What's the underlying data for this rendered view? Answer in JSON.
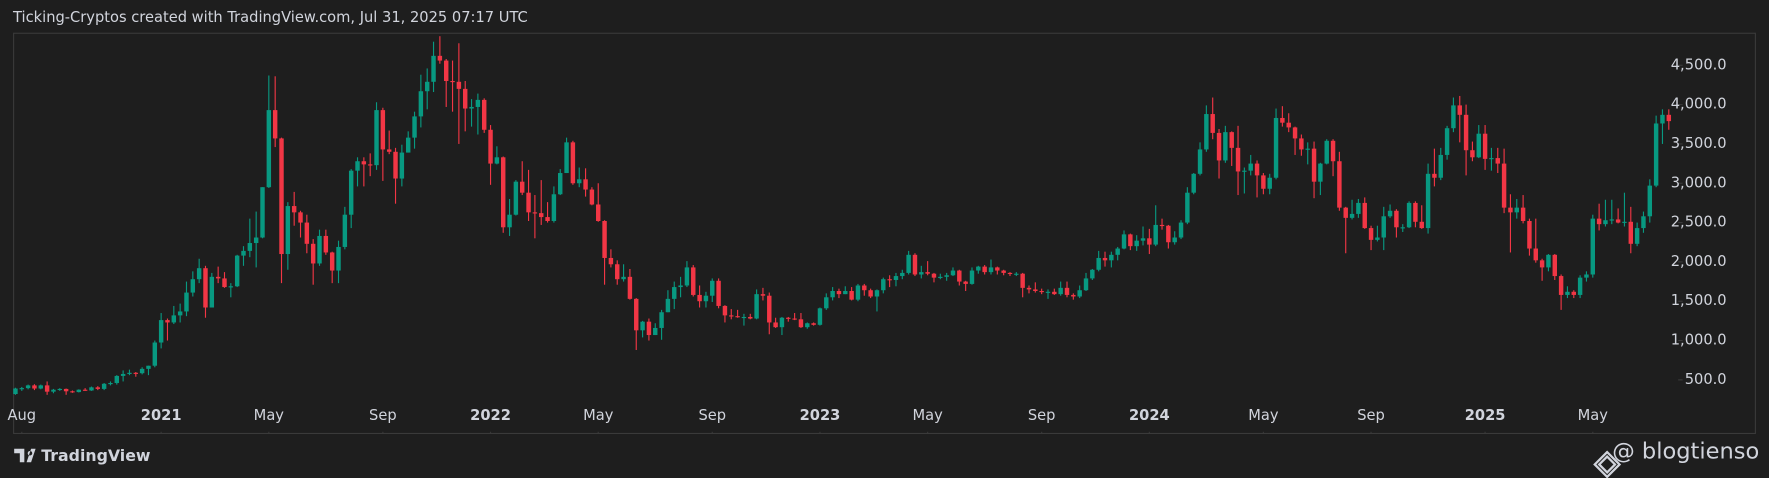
{
  "chart_data": {
    "type": "candlestick",
    "title": "Ticking-Cryptos created with TradingView.com, Jul 31, 2025 07:17 UTC",
    "up_color": "#089981",
    "down_color": "#f23645",
    "xlim": [
      -0.2,
      262.3
    ],
    "ylim": [
      -160,
      4900
    ],
    "yticks": [
      {
        "value": 500,
        "label": "500.0"
      },
      {
        "value": 1000,
        "label": "1,000.0"
      },
      {
        "value": 1500,
        "label": "1,500.0"
      },
      {
        "value": 2000,
        "label": "2,000.0"
      },
      {
        "value": 2500,
        "label": "2,500.0"
      },
      {
        "value": 3000,
        "label": "3,000.0"
      },
      {
        "value": 3500,
        "label": "3,500.0"
      },
      {
        "value": 4000,
        "label": "4,000.0"
      },
      {
        "value": 4500,
        "label": "4,500.0"
      }
    ],
    "xticks": [
      {
        "value": 1,
        "label": "Aug"
      },
      {
        "value": 23,
        "label": "2021"
      },
      {
        "value": 40,
        "label": "May"
      },
      {
        "value": 58,
        "label": "Sep"
      },
      {
        "value": 75,
        "label": "2022"
      },
      {
        "value": 92,
        "label": "May"
      },
      {
        "value": 110,
        "label": "Sep"
      },
      {
        "value": 127,
        "label": "2023"
      },
      {
        "value": 144,
        "label": "May"
      },
      {
        "value": 162,
        "label": "Sep"
      },
      {
        "value": 179,
        "label": "2024"
      },
      {
        "value": 197,
        "label": "May"
      },
      {
        "value": 214,
        "label": "Sep"
      },
      {
        "value": 232,
        "label": "2025"
      },
      {
        "value": 249,
        "label": "May"
      }
    ],
    "open": [
      320,
      390,
      395,
      430,
      390,
      430,
      350,
      375,
      385,
      355,
      345,
      375,
      365,
      405,
      385,
      450,
      460,
      550,
      575,
      590,
      585,
      640,
      680,
      975,
      1260,
      1230,
      1320,
      1370,
      1610,
      1780,
      1920,
      1420,
      1810,
      1790,
      1680,
      1690,
      2080,
      2140,
      2240,
      2310,
      2950,
      3930,
      3570,
      2100,
      2710,
      2630,
      2500,
      2230,
      1980,
      2330,
      2120,
      1890,
      2190,
      2600,
      3160,
      3280,
      3240,
      3230,
      3930,
      3430,
      3400,
      3060,
      3390,
      3580,
      3850,
      4170,
      4290,
      4620,
      4560,
      4300,
      4290,
      4200,
      3950,
      3970,
      4060,
      3680,
      3250,
      3330,
      2440,
      2600,
      3020,
      2880,
      2630,
      2620,
      2570,
      2520,
      2860,
      3130,
      3520,
      3000,
      3050,
      2920,
      2730,
      2520,
      2050,
      1970,
      1780,
      1810,
      1530,
      1130,
      1240,
      1070,
      1160,
      1360,
      1530,
      1680,
      1700,
      1930,
      1580,
      1500,
      1570,
      1760,
      1440,
      1320,
      1310,
      1300,
      1300,
      1280,
      1590,
      1570,
      1230,
      1170,
      1290,
      1280,
      1270,
      1170,
      1220,
      1200,
      1410,
      1550,
      1630,
      1590,
      1630,
      1520,
      1700,
      1640,
      1560,
      1640,
      1780,
      1770,
      1820,
      1860,
      2090,
      1840,
      1870,
      1850,
      1800,
      1810,
      1830,
      1890,
      1750,
      1720,
      1890,
      1940,
      1870,
      1930,
      1890,
      1860,
      1850,
      1850,
      1670,
      1650,
      1630,
      1620,
      1620,
      1590,
      1670,
      1580,
      1560,
      1640,
      1790,
      1900,
      2050,
      2020,
      2090,
      2170,
      2350,
      2200,
      2270,
      2300,
      2220,
      2470,
      2460,
      2250,
      2310,
      2500,
      2880,
      3120,
      3430,
      3880,
      3640,
      3290,
      3650,
      3450,
      3150,
      3160,
      3250,
      3100,
      2930,
      3070,
      3830,
      3770,
      3710,
      3570,
      3430,
      3440,
      3020,
      3250,
      3540,
      3280,
      2690,
      2560,
      2610,
      2750,
      2430,
      2280,
      2310,
      2580,
      2650,
      2440,
      2440,
      2750,
      2510,
      2430,
      3120,
      3070,
      3360,
      3700,
      3990,
      3870,
      3420,
      3330,
      3630,
      3310,
      3320,
      3250,
      2690,
      2630,
      2690,
      2520,
      2170,
      2020,
      1930,
      2090,
      1820,
      1580,
      1620,
      1580,
      1800,
      1840,
      2550,
      2480,
      2530,
      2540,
      2500,
      2510,
      2230,
      2430,
      2580,
      2970,
      3760,
      3870
    ],
    "high": [
      400,
      410,
      440,
      445,
      440,
      480,
      385,
      395,
      390,
      365,
      380,
      395,
      415,
      420,
      460,
      480,
      560,
      620,
      630,
      600,
      660,
      680,
      1000,
      1350,
      1280,
      1440,
      1470,
      1750,
      1880,
      2040,
      1950,
      1860,
      1940,
      1870,
      1730,
      2090,
      2200,
      2550,
      2640,
      2950,
      4370,
      4360,
      3580,
      2760,
      2890,
      2650,
      2600,
      2290,
      2410,
      2410,
      2130,
      2270,
      2700,
      3180,
      3330,
      3330,
      3380,
      4030,
      3960,
      3670,
      3450,
      3490,
      3660,
      3910,
      4380,
      4460,
      4800,
      4870,
      4580,
      4560,
      4780,
      4300,
      4070,
      4140,
      4080,
      3740,
      3470,
      3340,
      2800,
      3040,
      3280,
      3170,
      2850,
      3040,
      2760,
      2960,
      3180,
      3580,
      3540,
      3200,
      3190,
      2950,
      3000,
      2530,
      2160,
      2020,
      1970,
      1910,
      1540,
      1250,
      1280,
      1220,
      1390,
      1640,
      1750,
      1810,
      2010,
      1960,
      1700,
      1620,
      1790,
      1790,
      1450,
      1400,
      1390,
      1340,
      1340,
      1650,
      1670,
      1610,
      1290,
      1300,
      1300,
      1350,
      1350,
      1230,
      1230,
      1420,
      1600,
      1680,
      1660,
      1690,
      1680,
      1720,
      1720,
      1660,
      1650,
      1800,
      1830,
      1860,
      1900,
      2140,
      2110,
      1950,
      2010,
      1860,
      1850,
      1860,
      1930,
      1900,
      1760,
      1930,
      1950,
      1960,
      2030,
      1940,
      1900,
      1870,
      1870,
      1860,
      1700,
      1740,
      1660,
      1650,
      1660,
      1750,
      1750,
      1600,
      1700,
      1860,
      1910,
      2140,
      2130,
      2130,
      2190,
      2400,
      2360,
      2340,
      2450,
      2420,
      2720,
      2550,
      2470,
      2390,
      2530,
      2950,
      3130,
      3520,
      3990,
      4090,
      3690,
      3730,
      3660,
      3730,
      3200,
      3360,
      3290,
      3130,
      3120,
      3950,
      3980,
      3890,
      3720,
      3620,
      3520,
      3530,
      3260,
      3560,
      3560,
      3400,
      2700,
      2790,
      2800,
      2820,
      2460,
      2460,
      2700,
      2730,
      2670,
      2480,
      2770,
      2770,
      2720,
      3250,
      3440,
      3450,
      3730,
      4090,
      4110,
      4000,
      3530,
      3740,
      3740,
      3450,
      3450,
      3440,
      2860,
      2800,
      2850,
      2550,
      2550,
      2040,
      2100,
      2100,
      1840,
      1690,
      1640,
      1830,
      1880,
      2600,
      2740,
      2790,
      2790,
      2680,
      2880,
      2700,
      2500,
      2640,
      3050,
      3860,
      3940,
      3940
    ],
    "low": [
      310,
      360,
      380,
      370,
      380,
      310,
      330,
      360,
      310,
      335,
      340,
      360,
      360,
      370,
      370,
      430,
      440,
      480,
      560,
      540,
      570,
      560,
      660,
      900,
      1000,
      1210,
      1230,
      1310,
      1560,
      1730,
      1290,
      1420,
      1730,
      1670,
      1550,
      1680,
      1950,
      2060,
      1930,
      2300,
      2940,
      3460,
      1730,
      1900,
      2460,
      2310,
      2110,
      1710,
      1950,
      2090,
      1730,
      1730,
      2160,
      2430,
      2960,
      2960,
      3090,
      3170,
      3030,
      3370,
      2740,
      2960,
      3390,
      3440,
      3710,
      3940,
      4160,
      4520,
      3970,
      3910,
      3500,
      3660,
      3720,
      3620,
      3640,
      2980,
      3240,
      2370,
      2330,
      2590,
      2850,
      2520,
      2300,
      2470,
      2500,
      2500,
      2850,
      3130,
      2980,
      2950,
      2830,
      2720,
      2510,
      1710,
      1930,
      1710,
      1750,
      1520,
      880,
      1040,
      1000,
      1070,
      1010,
      1360,
      1400,
      1550,
      1680,
      1560,
      1420,
      1420,
      1490,
      1410,
      1230,
      1270,
      1290,
      1190,
      1270,
      1270,
      1510,
      1080,
      1160,
      1070,
      1240,
      1260,
      1160,
      1150,
      1190,
      1190,
      1390,
      1510,
      1540,
      1590,
      1510,
      1500,
      1570,
      1540,
      1370,
      1600,
      1680,
      1690,
      1780,
      1840,
      1820,
      1790,
      1830,
      1740,
      1780,
      1760,
      1820,
      1700,
      1630,
      1710,
      1850,
      1840,
      1840,
      1840,
      1830,
      1820,
      1820,
      1550,
      1600,
      1610,
      1590,
      1530,
      1580,
      1570,
      1550,
      1520,
      1540,
      1630,
      1770,
      1880,
      1940,
      1930,
      2020,
      2160,
      2150,
      2140,
      2210,
      2100,
      2200,
      2410,
      2170,
      2220,
      2290,
      2480,
      2860,
      3100,
      3400,
      3560,
      3060,
      3260,
      3220,
      2850,
      2870,
      3100,
      2820,
      2860,
      2860,
      3050,
      3720,
      3650,
      3360,
      3350,
      3240,
      2810,
      2850,
      3240,
      3090,
      2650,
      2110,
      2540,
      2560,
      2420,
      2150,
      2260,
      2150,
      2560,
      2310,
      2380,
      2430,
      2440,
      2420,
      2360,
      2960,
      3040,
      3300,
      3650,
      3520,
      3100,
      3280,
      3320,
      3170,
      3160,
      3130,
      2620,
      2120,
      2550,
      2490,
      2080,
      1990,
      1760,
      1880,
      1770,
      1390,
      1540,
      1540,
      1540,
      1750,
      1800,
      2400,
      2450,
      2480,
      2490,
      2450,
      2110,
      2200,
      2370,
      2500,
      2950,
      3500,
      3680
    ],
    "close": [
      390,
      395,
      430,
      390,
      430,
      350,
      375,
      385,
      355,
      345,
      375,
      365,
      405,
      385,
      450,
      460,
      550,
      575,
      590,
      585,
      640,
      680,
      975,
      1260,
      1230,
      1320,
      1370,
      1610,
      1780,
      1920,
      1420,
      1810,
      1790,
      1680,
      1690,
      2080,
      2140,
      2240,
      2310,
      2950,
      3930,
      3570,
      2100,
      2710,
      2630,
      2500,
      2230,
      1980,
      2330,
      2120,
      1890,
      2190,
      2600,
      3160,
      3280,
      3240,
      3230,
      3930,
      3430,
      3400,
      3060,
      3390,
      3580,
      3850,
      4170,
      4290,
      4620,
      4560,
      4300,
      4290,
      4200,
      3950,
      3970,
      4060,
      3680,
      3250,
      3330,
      2440,
      2600,
      3020,
      2880,
      2630,
      2620,
      2570,
      2520,
      2860,
      3130,
      3520,
      3000,
      3050,
      2920,
      2730,
      2520,
      2050,
      1970,
      1780,
      1810,
      1530,
      1130,
      1240,
      1070,
      1160,
      1360,
      1530,
      1680,
      1700,
      1930,
      1580,
      1500,
      1570,
      1760,
      1440,
      1320,
      1310,
      1300,
      1300,
      1280,
      1590,
      1570,
      1230,
      1170,
      1290,
      1280,
      1270,
      1170,
      1220,
      1200,
      1410,
      1550,
      1630,
      1590,
      1630,
      1520,
      1700,
      1640,
      1560,
      1640,
      1780,
      1770,
      1820,
      1860,
      2090,
      1840,
      1870,
      1850,
      1800,
      1810,
      1830,
      1890,
      1750,
      1720,
      1890,
      1940,
      1870,
      1930,
      1890,
      1860,
      1850,
      1850,
      1670,
      1650,
      1630,
      1620,
      1620,
      1590,
      1670,
      1580,
      1560,
      1640,
      1790,
      1900,
      2050,
      2020,
      2090,
      2170,
      2350,
      2200,
      2270,
      2300,
      2220,
      2470,
      2460,
      2250,
      2310,
      2500,
      2880,
      3120,
      3430,
      3880,
      3640,
      3290,
      3650,
      3450,
      3150,
      3160,
      3250,
      3100,
      2930,
      3070,
      3830,
      3770,
      3710,
      3570,
      3430,
      3440,
      3020,
      3250,
      3540,
      3280,
      2690,
      2560,
      2610,
      2750,
      2430,
      2280,
      2310,
      2580,
      2650,
      2440,
      2440,
      2750,
      2510,
      2430,
      3120,
      3070,
      3360,
      3700,
      3990,
      3870,
      3420,
      3330,
      3630,
      3310,
      3320,
      3250,
      2690,
      2630,
      2690,
      2520,
      2170,
      2020,
      1930,
      2090,
      1820,
      1580,
      1620,
      1580,
      1800,
      1840,
      2550,
      2480,
      2530,
      2540,
      2500,
      2510,
      2230,
      2430,
      2580,
      2970,
      3760,
      3870,
      3790
    ]
  },
  "footer": {
    "logo_text": "TradingView",
    "watermark": "@ blogtienso"
  }
}
